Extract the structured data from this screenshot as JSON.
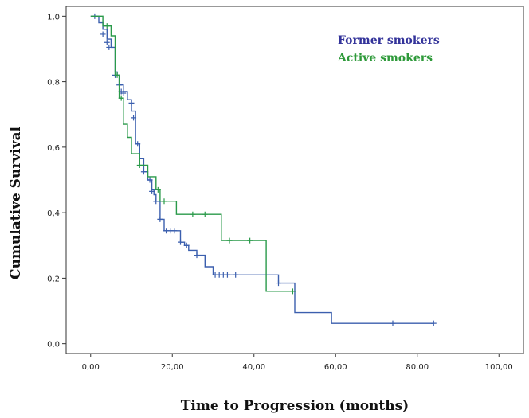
{
  "chart_data": {
    "type": "line",
    "subtype": "kaplan-meier step",
    "xlabel": "Time to Progression (months)",
    "ylabel": "Cumulative Survival",
    "xlim": [
      -6,
      106
    ],
    "ylim": [
      -0.03,
      1.03
    ],
    "xticks": [
      0,
      20,
      40,
      60,
      80,
      100
    ],
    "xtick_labels": [
      "0,00",
      "20,00",
      "40,00",
      "60,00",
      "80,00",
      "100,00"
    ],
    "yticks": [
      0,
      0.2,
      0.4,
      0.6,
      0.8,
      1.0
    ],
    "ytick_labels": [
      "0,0",
      "0,2",
      "0,4",
      "0,6",
      "0,8",
      "1,0"
    ],
    "legend_position": "top-right",
    "series": [
      {
        "name": "Former smokers",
        "color": "#3b5fae",
        "legend_color": "#33339a",
        "steps": [
          [
            0,
            1.0
          ],
          [
            2,
            0.98
          ],
          [
            3,
            0.96
          ],
          [
            4,
            0.93
          ],
          [
            5,
            0.905
          ],
          [
            6,
            0.83
          ],
          [
            6.5,
            0.82
          ],
          [
            7,
            0.79
          ],
          [
            8,
            0.77
          ],
          [
            9,
            0.745
          ],
          [
            10,
            0.71
          ],
          [
            11,
            0.61
          ],
          [
            12,
            0.565
          ],
          [
            13,
            0.525
          ],
          [
            14,
            0.5
          ],
          [
            15,
            0.47
          ],
          [
            15.5,
            0.455
          ],
          [
            16,
            0.435
          ],
          [
            17,
            0.38
          ],
          [
            18,
            0.345
          ],
          [
            22,
            0.31
          ],
          [
            23,
            0.3
          ],
          [
            24,
            0.285
          ],
          [
            26,
            0.27
          ],
          [
            28,
            0.235
          ],
          [
            30,
            0.21
          ],
          [
            46,
            0.185
          ],
          [
            50,
            0.095
          ],
          [
            59,
            0.062
          ],
          [
            84,
            0.062
          ]
        ],
        "censored": [
          [
            1,
            1.0
          ],
          [
            3,
            0.945
          ],
          [
            4,
            0.92
          ],
          [
            4.5,
            0.905
          ],
          [
            6,
            0.82
          ],
          [
            7,
            0.79
          ],
          [
            7.5,
            0.77
          ],
          [
            8,
            0.765
          ],
          [
            10,
            0.735
          ],
          [
            10.5,
            0.69
          ],
          [
            11.5,
            0.61
          ],
          [
            13,
            0.525
          ],
          [
            14.5,
            0.5
          ],
          [
            15,
            0.465
          ],
          [
            16,
            0.435
          ],
          [
            17,
            0.38
          ],
          [
            18.5,
            0.345
          ],
          [
            19.5,
            0.345
          ],
          [
            20.5,
            0.345
          ],
          [
            22,
            0.31
          ],
          [
            23.5,
            0.3
          ],
          [
            26,
            0.27
          ],
          [
            30.5,
            0.21
          ],
          [
            31.5,
            0.21
          ],
          [
            32.5,
            0.21
          ],
          [
            33.5,
            0.21
          ],
          [
            35.5,
            0.21
          ],
          [
            46,
            0.185
          ],
          [
            74,
            0.062
          ],
          [
            84,
            0.062
          ]
        ]
      },
      {
        "name": "Active smokers",
        "color": "#2a9a4a",
        "legend_color": "#2e9a3a",
        "steps": [
          [
            0,
            1.0
          ],
          [
            3,
            0.97
          ],
          [
            5,
            0.94
          ],
          [
            6,
            0.82
          ],
          [
            7,
            0.75
          ],
          [
            8,
            0.67
          ],
          [
            9,
            0.63
          ],
          [
            10,
            0.58
          ],
          [
            12,
            0.545
          ],
          [
            14,
            0.51
          ],
          [
            16,
            0.47
          ],
          [
            17,
            0.435
          ],
          [
            21,
            0.395
          ],
          [
            32,
            0.315
          ],
          [
            43,
            0.16
          ],
          [
            50,
            0.16
          ]
        ],
        "censored": [
          [
            4,
            0.97
          ],
          [
            6.5,
            0.82
          ],
          [
            7.5,
            0.75
          ],
          [
            12,
            0.545
          ],
          [
            16.5,
            0.47
          ],
          [
            18,
            0.435
          ],
          [
            25,
            0.395
          ],
          [
            28,
            0.395
          ],
          [
            34,
            0.315
          ],
          [
            39,
            0.315
          ],
          [
            49.5,
            0.16
          ]
        ]
      }
    ]
  }
}
